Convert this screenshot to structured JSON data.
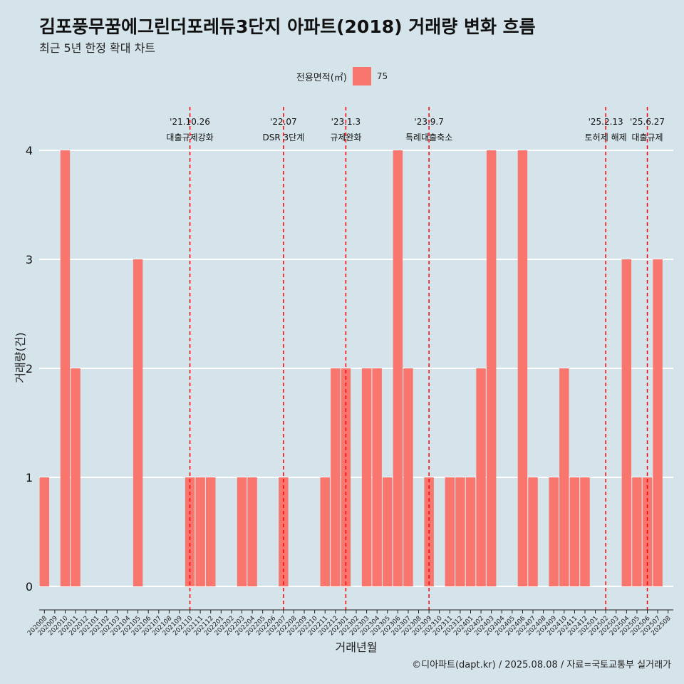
{
  "title": "김포풍무꿈에그린더포레듀3단지 아파트(2018) 거래량 변화 흐름",
  "subtitle": "최근 5년 한정 확대 차트",
  "caption": "©디아파트(dapt.kr) / 2025.08.08 / 자료=국토교통부 실거래가",
  "legend": {
    "title": "전용면적(㎡)",
    "label": "75",
    "color": "#f8766d"
  },
  "chart_data": {
    "type": "bar",
    "xlabel": "거래년월",
    "ylabel": "거래량(건)",
    "ylim": [
      0,
      4
    ],
    "yticks": [
      0,
      1,
      2,
      3,
      4
    ],
    "bar_color": "#f8766d",
    "categories": [
      "202008",
      "202009",
      "202010",
      "202011",
      "202012",
      "202101",
      "202102",
      "202103",
      "202104",
      "202105",
      "202106",
      "202107",
      "202108",
      "202109",
      "202110",
      "202111",
      "202112",
      "202201",
      "202202",
      "202203",
      "202204",
      "202205",
      "202206",
      "202207",
      "202208",
      "202209",
      "202210",
      "202211",
      "202212",
      "202301",
      "202302",
      "202303",
      "202304",
      "202305",
      "202306",
      "202307",
      "202308",
      "202309",
      "202310",
      "202311",
      "202312",
      "202401",
      "202402",
      "202403",
      "202404",
      "202405",
      "202406",
      "202407",
      "202408",
      "202409",
      "202410",
      "202411",
      "202412",
      "202501",
      "202502",
      "202503",
      "202504",
      "202505",
      "202506",
      "202507",
      "202508"
    ],
    "series": [
      {
        "name": "75",
        "values": [
          1,
          0,
          4,
          2,
          0,
          0,
          0,
          0,
          0,
          3,
          0,
          0,
          0,
          0,
          1,
          1,
          1,
          0,
          0,
          1,
          1,
          0,
          0,
          1,
          0,
          0,
          0,
          1,
          2,
          2,
          0,
          2,
          2,
          1,
          4,
          2,
          0,
          1,
          0,
          1,
          1,
          1,
          2,
          4,
          0,
          0,
          4,
          1,
          0,
          1,
          2,
          1,
          1,
          0,
          0,
          0,
          3,
          1,
          1,
          3,
          0
        ]
      }
    ],
    "events": [
      {
        "date": "'21.10.26",
        "label": "대출규제강화",
        "category": "202110"
      },
      {
        "date": "'22.07",
        "label": "DSR 3단계",
        "category": "202207"
      },
      {
        "date": "'23.1.3",
        "label": "규제완화",
        "category": "202301"
      },
      {
        "date": "'23.9.7",
        "label": "특례대출축소",
        "category": "202309"
      },
      {
        "date": "'25.2.13",
        "label": "토허제 해제",
        "category": "202502"
      },
      {
        "date": "'25.6.27",
        "label": "대출규제",
        "category": "202506"
      }
    ]
  }
}
